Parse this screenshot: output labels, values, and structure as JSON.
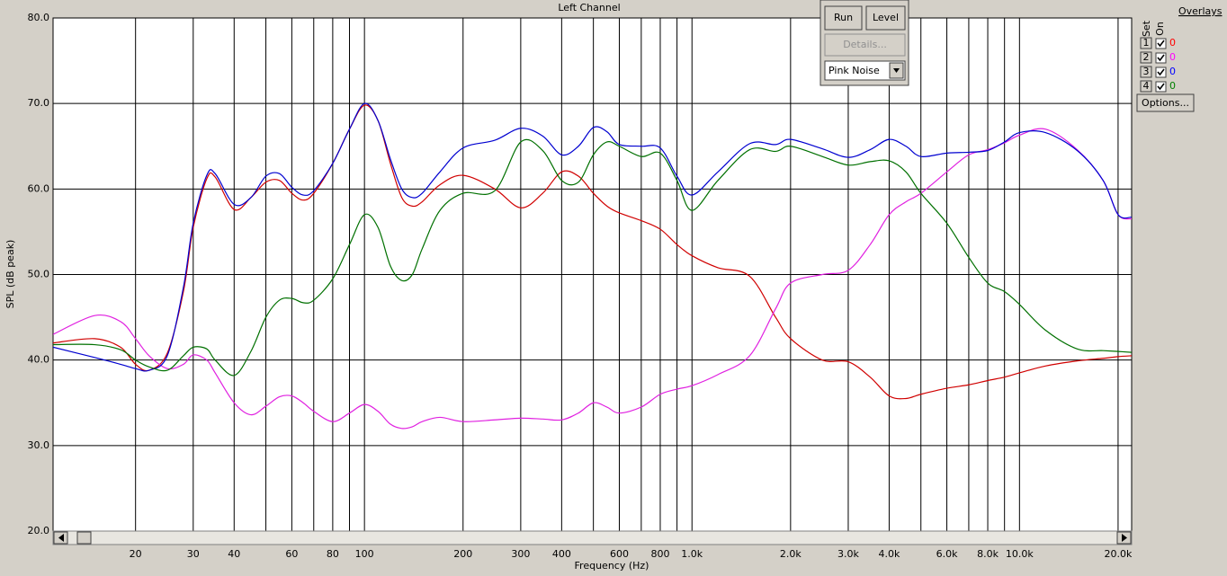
{
  "chart_data": {
    "type": "line",
    "title": "Left Channel",
    "x_label": "Frequency (Hz)",
    "y_label": "SPL (dB peak)",
    "x": [
      11.2,
      15,
      18,
      20,
      22,
      25,
      28,
      30,
      33,
      35,
      40,
      45,
      50,
      55,
      60,
      65,
      70,
      80,
      90,
      100,
      110,
      120,
      130,
      140,
      150,
      170,
      200,
      250,
      300,
      350,
      400,
      450,
      500,
      550,
      600,
      700,
      800,
      900,
      1000,
      1200,
      1500,
      1800,
      2000,
      2500,
      3000,
      3500,
      4000,
      4500,
      5000,
      6000,
      7000,
      8000,
      9000,
      10000,
      12000,
      15000,
      18000,
      20000,
      22000
    ],
    "series": [
      {
        "color": "#d00000",
        "values": [
          42,
          42.5,
          41.5,
          39.5,
          38.8,
          40.8,
          48,
          55.5,
          61.2,
          61.4,
          57.6,
          59,
          60.8,
          61,
          59.5,
          58.7,
          59.5,
          63,
          67,
          69.8,
          68,
          63,
          59,
          58,
          58.5,
          60.5,
          61.6,
          60,
          57.8,
          59.5,
          62,
          61.5,
          59.5,
          58,
          57.2,
          56.3,
          55.3,
          53.5,
          52.2,
          50.8,
          49.8,
          45,
          42.5,
          40,
          39.8,
          38,
          35.8,
          35.5,
          36,
          36.7,
          37.1,
          37.6,
          38,
          38.5,
          39.3,
          39.9,
          40.2,
          40.4,
          40.5
        ]
      },
      {
        "color": "#e020e0",
        "values": [
          43,
          45.2,
          44.5,
          42.5,
          40.5,
          39,
          39.5,
          40.6,
          40,
          38.5,
          35,
          33.6,
          34.6,
          35.7,
          35.8,
          35,
          34,
          32.8,
          33.8,
          34.8,
          34,
          32.5,
          32,
          32.2,
          32.8,
          33.3,
          32.8,
          33,
          33.2,
          33.1,
          33,
          33.8,
          35,
          34.5,
          33.8,
          34.5,
          36,
          36.6,
          37,
          38.3,
          40.5,
          46,
          49,
          50,
          50.5,
          53.5,
          57,
          58.5,
          59.5,
          62,
          64,
          64.6,
          65.4,
          66.3,
          67,
          64.6,
          61,
          57,
          56.5
        ]
      },
      {
        "color": "#0000d0",
        "values": [
          41.5,
          40.3,
          39.5,
          39,
          38.8,
          40.5,
          48.5,
          56,
          61.6,
          61.8,
          58.2,
          59,
          61.5,
          61.8,
          60.2,
          59.3,
          59.8,
          63,
          67,
          70,
          68,
          63.5,
          60,
          59,
          59.5,
          62,
          64.8,
          65.7,
          67.1,
          66.2,
          64,
          65,
          67.2,
          66.7,
          65.2,
          65,
          64.8,
          61.5,
          59.3,
          62,
          65.3,
          65.2,
          65.8,
          64.7,
          63.7,
          64.6,
          65.8,
          65,
          63.8,
          64.2,
          64.3,
          64.5,
          65.5,
          66.6,
          66.6,
          64.5,
          61,
          57,
          56.7
        ]
      },
      {
        "color": "#007000",
        "values": [
          41.8,
          41.8,
          41.2,
          40,
          39.2,
          38.8,
          40.5,
          41.5,
          41.3,
          40,
          38.2,
          41,
          45,
          47,
          47.2,
          46.7,
          47,
          49.5,
          53.5,
          57,
          55.5,
          51,
          49.3,
          50,
          53,
          57.5,
          59.5,
          59.8,
          65.5,
          64.5,
          61,
          60.8,
          64,
          65.5,
          65,
          63.8,
          64.2,
          61,
          57.5,
          61,
          64.6,
          64.4,
          65,
          63.8,
          62.8,
          63.2,
          63.3,
          62,
          59.5,
          56,
          52,
          49,
          48,
          46.5,
          43.5,
          41.3,
          41.1,
          41,
          40.9
        ]
      }
    ],
    "xlog": true,
    "xlim": [
      11.2,
      22000
    ],
    "xticks": [
      20,
      30,
      40,
      60,
      80,
      100,
      200,
      300,
      400,
      600,
      800,
      {
        "value": 1000,
        "label": "1.0k"
      },
      {
        "value": 2000,
        "label": "2.0k"
      },
      {
        "value": 3000,
        "label": "3.0k"
      },
      {
        "value": 4000,
        "label": "4.0k"
      },
      {
        "value": 6000,
        "label": "6.0k"
      },
      {
        "value": 8000,
        "label": "8.0k"
      },
      {
        "value": 10000,
        "label": "10.0k"
      },
      {
        "value": 20000,
        "label": "20.0k"
      }
    ],
    "xgrid": [
      50,
      70,
      90,
      500,
      700,
      900,
      5000,
      7000,
      9000
    ],
    "ylim": [
      20,
      80
    ],
    "yticks": [
      {
        "value": 20,
        "label": "20.0"
      },
      {
        "value": 30,
        "label": "30.0"
      },
      {
        "value": 40,
        "label": "40.0"
      },
      {
        "value": 50,
        "label": "50.0"
      },
      {
        "value": 60,
        "label": "60.0"
      },
      {
        "value": 70,
        "label": "70.0"
      },
      {
        "value": 80,
        "label": "80.0"
      }
    ],
    "grid": true
  },
  "toolbar": {
    "run": "Run",
    "level": "Level",
    "details": "Details...",
    "signal": "Pink Noise"
  },
  "overlays": {
    "title": "Overlays",
    "set_label": "Set",
    "on_label": "On",
    "rows": [
      {
        "set": "1",
        "value": "0",
        "color": "#ff0000"
      },
      {
        "set": "2",
        "value": "0",
        "color": "#ff00ff"
      },
      {
        "set": "3",
        "value": "0",
        "color": "#0000ff"
      },
      {
        "set": "4",
        "value": "0",
        "color": "#008000"
      }
    ],
    "options": "Options..."
  }
}
